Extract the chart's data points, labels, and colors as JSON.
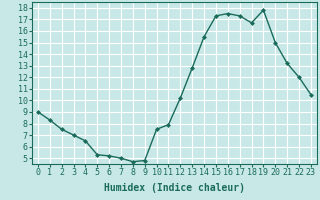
{
  "x": [
    0,
    1,
    2,
    3,
    4,
    5,
    6,
    7,
    8,
    9,
    10,
    11,
    12,
    13,
    14,
    15,
    16,
    17,
    18,
    19,
    20,
    21,
    22,
    23
  ],
  "y": [
    9.0,
    8.3,
    7.5,
    7.0,
    6.5,
    5.3,
    5.2,
    5.0,
    4.7,
    4.8,
    7.5,
    7.9,
    10.2,
    12.8,
    15.5,
    17.3,
    17.5,
    17.3,
    16.7,
    17.8,
    15.0,
    13.2,
    12.0,
    10.5
  ],
  "line_color": "#1a6b5a",
  "marker": "D",
  "marker_size": 2,
  "bg_color": "#c8e8e8",
  "grid_color": "#ffffff",
  "xlabel": "Humidex (Indice chaleur)",
  "ylabel": "",
  "xlim": [
    -0.5,
    23.5
  ],
  "ylim": [
    4.5,
    18.5
  ],
  "yticks": [
    5,
    6,
    7,
    8,
    9,
    10,
    11,
    12,
    13,
    14,
    15,
    16,
    17,
    18
  ],
  "xticks": [
    0,
    1,
    2,
    3,
    4,
    5,
    6,
    7,
    8,
    9,
    10,
    11,
    12,
    13,
    14,
    15,
    16,
    17,
    18,
    19,
    20,
    21,
    22,
    23
  ],
  "tick_label_fontsize": 6,
  "xlabel_fontsize": 7,
  "line_width": 1.0
}
